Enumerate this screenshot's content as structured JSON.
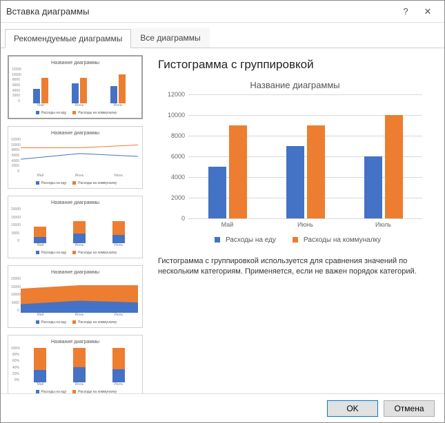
{
  "window": {
    "title": "Вставка диаграммы",
    "help": "?",
    "close": "✕"
  },
  "tabs": {
    "recommended": "Рекомендуемые диаграммы",
    "all": "Все диаграммы"
  },
  "colors": {
    "series1": "#4472c4",
    "series2": "#ed7d31",
    "grid": "#d8d8d8",
    "bg": "#ffffff"
  },
  "thumbCommon": {
    "title": "Название диаграммы",
    "categories": [
      "Май",
      "Июнь",
      "Июль"
    ],
    "legend1": "Расходы на еду",
    "legend2": "Расходы на коммуналку"
  },
  "thumbs": [
    {
      "type": "clustered-bar",
      "selected": true,
      "ySteps": [
        0,
        2000,
        4000,
        6000,
        8000,
        10000,
        12000
      ],
      "series1": [
        5000,
        7000,
        6000
      ],
      "series2": [
        9000,
        9000,
        10000
      ]
    },
    {
      "type": "line",
      "selected": false,
      "ySteps": [
        0,
        2000,
        4000,
        6000,
        8000,
        10000,
        12000
      ],
      "series1": [
        5000,
        7000,
        6000
      ],
      "series2": [
        9000,
        9000,
        10000
      ]
    },
    {
      "type": "stacked-bar",
      "selected": false,
      "ySteps": [
        0,
        5000,
        10000,
        15000,
        20000
      ],
      "series1": [
        5000,
        7000,
        6000
      ],
      "series2": [
        9000,
        9000,
        10000
      ]
    },
    {
      "type": "area",
      "selected": false,
      "ySteps": [
        0,
        5000,
        10000,
        15000,
        20000
      ],
      "series1": [
        5000,
        7000,
        6000
      ],
      "series2": [
        9000,
        9000,
        10000
      ]
    },
    {
      "type": "stacked-bar-100",
      "selected": false,
      "ySteps": [
        "0%",
        "20%",
        "40%",
        "60%",
        "80%",
        "100%"
      ],
      "series1": [
        5000,
        7000,
        6000
      ],
      "series2": [
        9000,
        9000,
        10000
      ]
    }
  ],
  "main": {
    "heading": "Гистограмма с группировкой",
    "chart": {
      "title": "Название диаграммы",
      "ymax": 12000,
      "ystep": 2000,
      "yticks": [
        0,
        2000,
        4000,
        6000,
        8000,
        10000,
        12000
      ],
      "categories": [
        "Май",
        "Июнь",
        "Июль"
      ],
      "series": [
        {
          "name": "Расходы на еду",
          "color": "#4472c4",
          "values": [
            5000,
            7000,
            6000
          ]
        },
        {
          "name": "Расходы на коммуналку",
          "color": "#ed7d31",
          "values": [
            9000,
            9000,
            10000
          ]
        }
      ]
    },
    "description": "Гистограмма с группировкой используется для сравнения значений по нескольким категориям. Применяется, если не важен порядок категорий."
  },
  "footer": {
    "ok": "OK",
    "cancel": "Отмена"
  }
}
